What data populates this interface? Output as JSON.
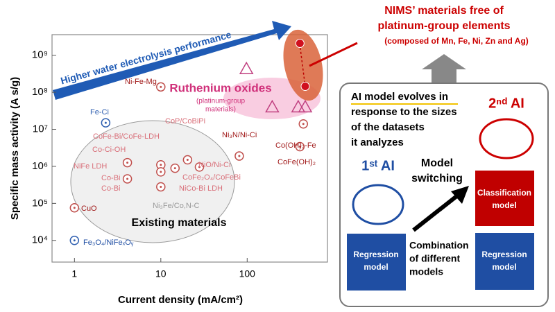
{
  "chart_data": {
    "type": "scatter",
    "x_label": "Current density (mA/cm²)",
    "y_label": "Specific mass activity (A s/g)",
    "log_x": true,
    "log_y": true,
    "xlim": [
      0.55,
      850
    ],
    "ylim": [
      2600,
      3600000000
    ],
    "xticks": [
      1,
      10,
      100
    ],
    "yticks": [
      {
        "value": 10000,
        "label": "10⁴"
      },
      {
        "value": 100000,
        "label": "10⁵"
      },
      {
        "value": 1000000,
        "label": "10⁶"
      },
      {
        "value": 10000000,
        "label": "10⁷"
      },
      {
        "value": 100000000,
        "label": "10⁸"
      },
      {
        "value": 1000000000,
        "label": "10⁹"
      }
    ],
    "series": [
      {
        "color": "#2f5fb0",
        "marker": "circle",
        "x": [
          2.3,
          1
        ],
        "values": [
          15000000,
          10000
        ]
      },
      {
        "name": "Existing materials",
        "color": "#c0504d",
        "marker": "circle",
        "x": [
          10,
          4.1,
          4.1,
          10,
          10,
          10,
          14.6,
          20.4,
          28,
          81,
          447,
          408,
          1
        ],
        "values": [
          140000000,
          1260000,
          460000,
          1100000,
          710000,
          280000,
          890000,
          1500000,
          960000,
          1900000,
          14000000,
          3400000,
          76000
        ]
      },
      {
        "name": "Ruthenium oxides",
        "color": "#c04080",
        "marker": "triangle",
        "x": [
          98,
          195,
          390,
          470
        ],
        "values": [
          430000000,
          40000000,
          40000000,
          40000000
        ]
      },
      {
        "color": "#d0101e",
        "marker": "filled",
        "x": [
          408,
          470
        ],
        "values": [
          2100000000,
          145000000
        ]
      }
    ],
    "annotations": [
      "Ni-Fe-Mg",
      "Fe-Ci",
      "CoFe-Bi/CoFe-LDH",
      "Co-Ci-OH",
      "NiFe LDH",
      "Co-Bi",
      "Co-Bi",
      "Ni₃Fe/Co,N-C",
      "NiCo-Bi LDH",
      "CoFe₂O₄/CoFeBi",
      "NiO/Ni-Ci",
      "CoP/CoBiPi",
      "Ni₃N/Ni-Ci",
      "Co(OH)₂-Fe",
      "CoFe(OH)₂",
      "CuO",
      "Fe₃O₄/NiFeₓOᵧ"
    ],
    "ruthenium_note": [
      "(platinum-group",
      "materials)"
    ],
    "arrow_label": "Higher water electrolysis performance"
  },
  "diagram": {
    "title": [
      "NIMS’ materials free of",
      "platinum-group elements"
    ],
    "subtitle": "(composed of Mn, Fe, Ni, Zn and Ag)",
    "box_text": [
      "AI model evolves in",
      "response to the sizes",
      "of the datasets",
      "it analyzes"
    ],
    "first_ai": "1ˢᵗ AI",
    "second_ai": "2ⁿᵈ AI",
    "switching": [
      "Model",
      "switching"
    ],
    "regression_1": [
      "Regression",
      "model"
    ],
    "classification": [
      "Classification",
      "model"
    ],
    "regression_2": [
      "Regression",
      "model"
    ],
    "combination": [
      "Combination",
      "of different",
      "models"
    ]
  }
}
